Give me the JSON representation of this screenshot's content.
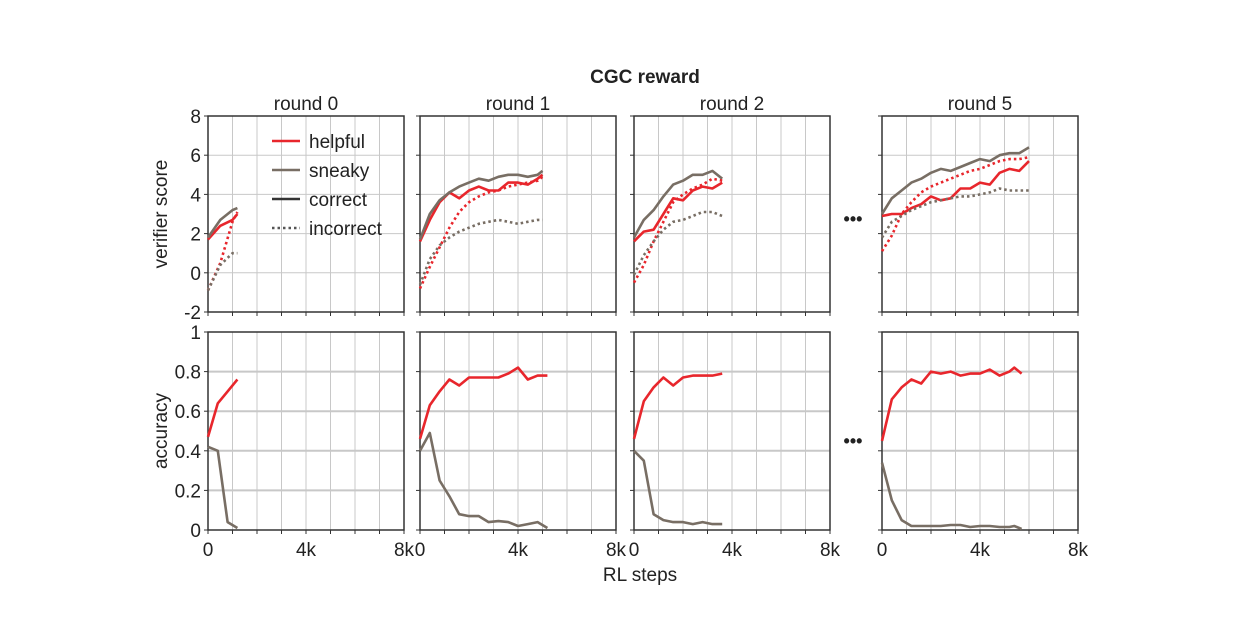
{
  "chart_data": {
    "type": "line",
    "title": "CGC reward",
    "xlabel": "RL steps",
    "xlim": [
      0,
      8000
    ],
    "xticks": [
      "0",
      "4k",
      "8k"
    ],
    "grid": true,
    "legend": {
      "placement": "top-left of first panel",
      "entries": [
        {
          "label": "helpful",
          "color": "#e8262c",
          "style": "solid"
        },
        {
          "label": "sneaky",
          "color": "#786e64",
          "style": "solid"
        },
        {
          "label": "correct",
          "color": "#333333",
          "style": "solid"
        },
        {
          "label": "incorrect",
          "color": "#555555",
          "style": "dotted"
        }
      ]
    },
    "colors": {
      "helpful": "#e8262c",
      "sneaky": "#786e64"
    },
    "ellipsis": "•••",
    "rows": [
      {
        "ylabel": "verifier score",
        "ylim": [
          -2,
          8
        ],
        "yticks": [
          "8",
          "6",
          "4",
          "2",
          "0",
          "-2"
        ]
      },
      {
        "ylabel": "accuracy",
        "ylim": [
          0,
          1
        ],
        "yticks": [
          "1",
          "0.8",
          "0.6",
          "0.4",
          "0.2",
          "0"
        ]
      }
    ],
    "panels": [
      {
        "title": "round 0",
        "verifier_score": [
          {
            "role": "helpful",
            "subset": "correct",
            "x": [
              0,
              500,
              1000,
              1200
            ],
            "y": [
              1.7,
              2.4,
              2.7,
              3.0
            ]
          },
          {
            "role": "sneaky",
            "subset": "correct",
            "x": [
              0,
              500,
              1000,
              1200
            ],
            "y": [
              1.8,
              2.7,
              3.2,
              3.3
            ]
          },
          {
            "role": "helpful",
            "subset": "incorrect",
            "x": [
              0,
              500,
              1000,
              1200
            ],
            "y": [
              -0.9,
              0.5,
              2.6,
              3.1
            ]
          },
          {
            "role": "sneaky",
            "subset": "incorrect",
            "x": [
              0,
              500,
              1000,
              1200
            ],
            "y": [
              -0.9,
              0.4,
              1.0,
              1.0
            ]
          }
        ],
        "accuracy": [
          {
            "role": "helpful",
            "x": [
              0,
              400,
              800,
              1200
            ],
            "y": [
              0.47,
              0.64,
              0.7,
              0.76
            ]
          },
          {
            "role": "sneaky",
            "x": [
              0,
              400,
              800,
              1200
            ],
            "y": [
              0.42,
              0.4,
              0.04,
              0.01
            ]
          }
        ]
      },
      {
        "title": "round 1",
        "verifier_score": [
          {
            "role": "helpful",
            "subset": "correct",
            "x": [
              0,
              400,
              800,
              1200,
              1600,
              2000,
              2400,
              2800,
              3200,
              3600,
              4000,
              4400,
              4800,
              5000
            ],
            "y": [
              1.6,
              2.7,
              3.6,
              4.1,
              3.8,
              4.2,
              4.4,
              4.2,
              4.2,
              4.6,
              4.6,
              4.5,
              4.8,
              5.0
            ]
          },
          {
            "role": "sneaky",
            "subset": "correct",
            "x": [
              0,
              400,
              800,
              1200,
              1600,
              2000,
              2400,
              2800,
              3200,
              3600,
              4000,
              4400,
              4800,
              5000
            ],
            "y": [
              1.7,
              3.0,
              3.7,
              4.1,
              4.4,
              4.6,
              4.8,
              4.7,
              4.9,
              5.0,
              5.0,
              4.9,
              5.0,
              5.2
            ]
          },
          {
            "role": "helpful",
            "subset": "incorrect",
            "x": [
              0,
              400,
              800,
              1200,
              1600,
              2000,
              2400,
              2800,
              3200,
              3600,
              4000,
              4400,
              4800,
              5000
            ],
            "y": [
              -0.8,
              0.3,
              1.3,
              2.3,
              3.1,
              3.6,
              3.9,
              4.1,
              4.2,
              4.4,
              4.5,
              4.6,
              4.7,
              4.9
            ]
          },
          {
            "role": "sneaky",
            "subset": "incorrect",
            "x": [
              0,
              400,
              800,
              1200,
              1600,
              2000,
              2400,
              2800,
              3200,
              3600,
              4000,
              4400,
              4800,
              5000
            ],
            "y": [
              -0.6,
              0.7,
              1.4,
              1.8,
              2.1,
              2.3,
              2.5,
              2.6,
              2.7,
              2.6,
              2.5,
              2.6,
              2.7,
              2.7
            ]
          }
        ],
        "accuracy": [
          {
            "role": "helpful",
            "x": [
              0,
              400,
              800,
              1200,
              1600,
              2000,
              2400,
              2800,
              3200,
              3600,
              4000,
              4400,
              4800,
              5200
            ],
            "y": [
              0.46,
              0.63,
              0.7,
              0.76,
              0.73,
              0.77,
              0.77,
              0.77,
              0.77,
              0.79,
              0.82,
              0.76,
              0.78,
              0.78
            ]
          },
          {
            "role": "sneaky",
            "x": [
              0,
              400,
              800,
              1200,
              1600,
              2000,
              2400,
              2800,
              3200,
              3600,
              4000,
              4400,
              4800,
              5200
            ],
            "y": [
              0.4,
              0.49,
              0.25,
              0.17,
              0.08,
              0.07,
              0.07,
              0.04,
              0.045,
              0.04,
              0.02,
              0.03,
              0.04,
              0.01
            ]
          }
        ]
      },
      {
        "title": "round 2",
        "verifier_score": [
          {
            "role": "helpful",
            "subset": "correct",
            "x": [
              0,
              400,
              800,
              1200,
              1600,
              2000,
              2400,
              2800,
              3200,
              3600
            ],
            "y": [
              1.6,
              2.1,
              2.2,
              3.0,
              3.8,
              3.7,
              4.2,
              4.4,
              4.3,
              4.6
            ]
          },
          {
            "role": "sneaky",
            "subset": "correct",
            "x": [
              0,
              400,
              800,
              1200,
              1600,
              2000,
              2400,
              2800,
              3200,
              3600
            ],
            "y": [
              1.8,
              2.7,
              3.2,
              3.9,
              4.5,
              4.7,
              5.0,
              5.0,
              5.2,
              4.8
            ]
          },
          {
            "role": "helpful",
            "subset": "incorrect",
            "x": [
              0,
              400,
              800,
              1200,
              1600,
              2000,
              2400,
              2800,
              3200,
              3600
            ],
            "y": [
              -0.5,
              0.4,
              1.6,
              2.6,
              3.6,
              4.0,
              4.3,
              4.5,
              4.8,
              4.7
            ]
          },
          {
            "role": "sneaky",
            "subset": "incorrect",
            "x": [
              0,
              400,
              800,
              1200,
              1600,
              2000,
              2400,
              2800,
              3200,
              3600
            ],
            "y": [
              -0.1,
              0.9,
              1.6,
              2.2,
              2.6,
              2.7,
              2.9,
              3.1,
              3.1,
              2.9
            ]
          }
        ],
        "accuracy": [
          {
            "role": "helpful",
            "x": [
              0,
              400,
              800,
              1200,
              1600,
              2000,
              2400,
              2800,
              3200,
              3600
            ],
            "y": [
              0.46,
              0.65,
              0.72,
              0.77,
              0.73,
              0.77,
              0.78,
              0.78,
              0.78,
              0.79
            ]
          },
          {
            "role": "sneaky",
            "x": [
              0,
              400,
              800,
              1200,
              1600,
              2000,
              2400,
              2800,
              3200,
              3600
            ],
            "y": [
              0.4,
              0.35,
              0.08,
              0.05,
              0.04,
              0.04,
              0.03,
              0.04,
              0.03,
              0.03
            ]
          }
        ]
      },
      {
        "title": "round 5",
        "verifier_score": [
          {
            "role": "helpful",
            "subset": "correct",
            "x": [
              0,
              400,
              800,
              1200,
              1600,
              2000,
              2400,
              2800,
              3200,
              3600,
              4000,
              4400,
              4800,
              5200,
              5600,
              6000
            ],
            "y": [
              2.9,
              3.0,
              3.0,
              3.3,
              3.5,
              3.9,
              3.7,
              3.8,
              4.3,
              4.3,
              4.6,
              4.5,
              5.1,
              5.3,
              5.2,
              5.7
            ]
          },
          {
            "role": "sneaky",
            "subset": "correct",
            "x": [
              0,
              400,
              800,
              1200,
              1600,
              2000,
              2400,
              2800,
              3200,
              3600,
              4000,
              4400,
              4800,
              5200,
              5600,
              6000
            ],
            "y": [
              3.0,
              3.8,
              4.2,
              4.6,
              4.8,
              5.1,
              5.3,
              5.2,
              5.4,
              5.6,
              5.8,
              5.7,
              6.0,
              6.1,
              6.1,
              6.4
            ]
          },
          {
            "role": "helpful",
            "subset": "incorrect",
            "x": [
              0,
              400,
              800,
              1200,
              1600,
              2000,
              2400,
              2800,
              3200,
              3600,
              4000,
              4400,
              4800,
              5200,
              5600,
              6000
            ],
            "y": [
              1.1,
              1.9,
              3.0,
              3.6,
              4.1,
              4.4,
              4.6,
              4.8,
              5.0,
              5.2,
              5.3,
              5.5,
              5.7,
              5.8,
              5.8,
              5.9
            ]
          },
          {
            "role": "sneaky",
            "subset": "incorrect",
            "x": [
              0,
              400,
              800,
              1200,
              1600,
              2000,
              2400,
              2800,
              3200,
              3600,
              4000,
              4400,
              4800,
              5200,
              5600,
              6000
            ],
            "y": [
              1.8,
              2.6,
              2.9,
              3.2,
              3.4,
              3.6,
              3.7,
              3.8,
              3.9,
              3.9,
              4.0,
              4.1,
              4.3,
              4.2,
              4.2,
              4.2
            ]
          }
        ],
        "accuracy": [
          {
            "role": "helpful",
            "x": [
              0,
              400,
              800,
              1200,
              1600,
              2000,
              2400,
              2800,
              3200,
              3600,
              4000,
              4400,
              4800,
              5200,
              5400,
              5700
            ],
            "y": [
              0.45,
              0.66,
              0.72,
              0.76,
              0.74,
              0.8,
              0.79,
              0.8,
              0.78,
              0.79,
              0.79,
              0.81,
              0.78,
              0.8,
              0.82,
              0.79
            ]
          },
          {
            "role": "sneaky",
            "x": [
              0,
              400,
              800,
              1200,
              1600,
              2000,
              2400,
              2800,
              3200,
              3600,
              4000,
              4400,
              4800,
              5200,
              5400,
              5700
            ],
            "y": [
              0.34,
              0.15,
              0.05,
              0.02,
              0.02,
              0.02,
              0.02,
              0.025,
              0.025,
              0.015,
              0.02,
              0.02,
              0.015,
              0.015,
              0.02,
              0.005
            ]
          }
        ]
      }
    ]
  }
}
